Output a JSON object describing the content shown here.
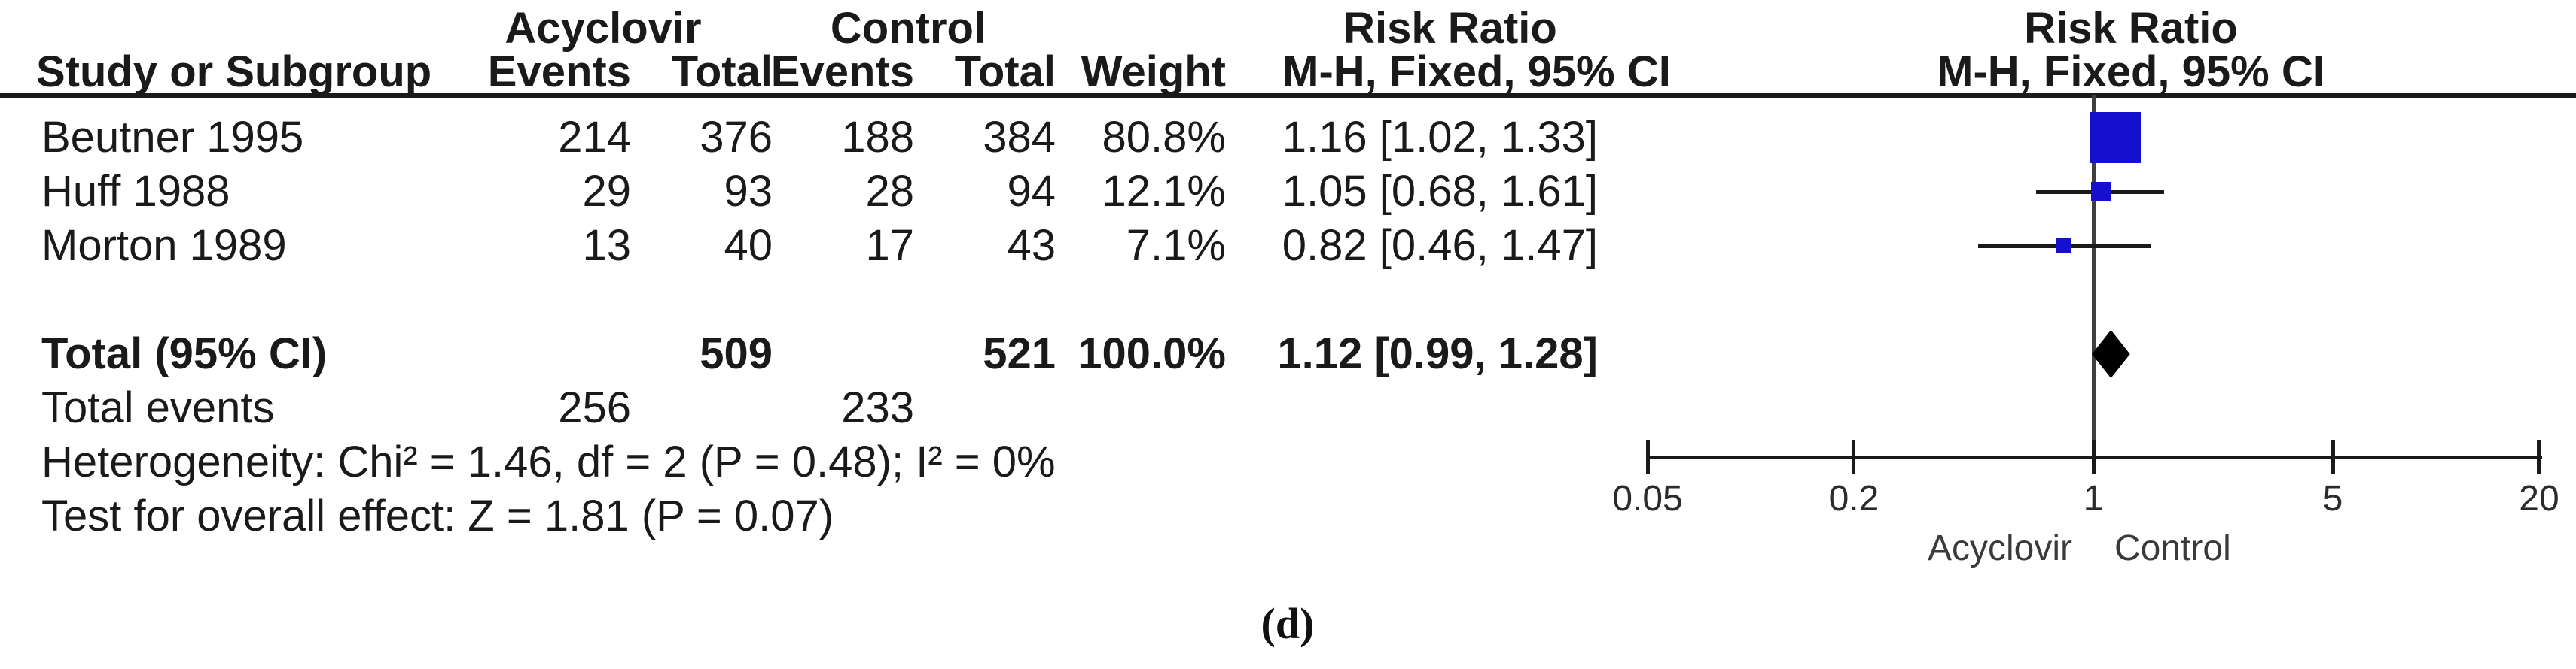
{
  "header": {
    "group_acyclovir": "Acyclovir",
    "group_control": "Control",
    "risk_ratio_left": "Risk Ratio",
    "risk_ratio_right": "Risk Ratio",
    "study_col": "Study or Subgroup",
    "events_col_acyclovir": "Events",
    "total_col_acyclovir": "Total",
    "events_col_control": "Events",
    "total_col_control": "Total",
    "weight_col": "Weight",
    "mh_fixed_left": "M-H, Fixed, 95% CI",
    "mh_fixed_right": "M-H, Fixed, 95% CI"
  },
  "studies": [
    {
      "name": "Beutner 1995",
      "ac_events": "214",
      "ac_total": "376",
      "ctl_events": "188",
      "ctl_total": "384",
      "weight": "80.8%",
      "rr_ci_text": "1.16 [1.02, 1.33]"
    },
    {
      "name": "Huff 1988",
      "ac_events": "29",
      "ac_total": "93",
      "ctl_events": "28",
      "ctl_total": "94",
      "weight": "12.1%",
      "rr_ci_text": "1.05 [0.68, 1.61]"
    },
    {
      "name": "Morton 1989",
      "ac_events": "13",
      "ac_total": "40",
      "ctl_events": "17",
      "ctl_total": "43",
      "weight": "7.1%",
      "rr_ci_text": "0.82 [0.46, 1.47]"
    }
  ],
  "total_row": {
    "label": "Total (95% CI)",
    "ac_total": "509",
    "ctl_total": "521",
    "weight": "100.0%",
    "rr_ci_text": "1.12 [0.99, 1.28]"
  },
  "total_events_row": {
    "label": "Total events",
    "ac_events": "256",
    "ctl_events": "233"
  },
  "heterogeneity_text": "Heterogeneity: Chi² = 1.46, df = 2 (P = 0.48); I² = 0%",
  "overall_effect_text": "Test for overall effect: Z = 1.81 (P = 0.07)",
  "axis": {
    "favours_left": "Acyclovir",
    "favours_right": "Control"
  },
  "caption": "(d)",
  "colors": {
    "marker_blue": "#1410CE",
    "diamond_black": "#000000",
    "line_dark": "#1a1a1a",
    "null_line_gray": "#3f3f3f"
  },
  "chart_data": {
    "type": "scatter",
    "subtype": "forest-plot",
    "effect_measure": "Risk Ratio (M-H, Fixed, 95% CI)",
    "scale": "log10",
    "x_ticks": [
      0.05,
      0.2,
      1,
      5,
      20
    ],
    "xlim": [
      0.05,
      20
    ],
    "null_line": 1,
    "studies": [
      {
        "label": "Beutner 1995",
        "rr": 1.16,
        "ci_low": 1.02,
        "ci_high": 1.33,
        "weight_pct": 80.8
      },
      {
        "label": "Huff 1988",
        "rr": 1.05,
        "ci_low": 0.68,
        "ci_high": 1.61,
        "weight_pct": 12.1
      },
      {
        "label": "Morton 1989",
        "rr": 0.82,
        "ci_low": 0.46,
        "ci_high": 1.47,
        "weight_pct": 7.1
      }
    ],
    "total": {
      "label": "Total (95% CI)",
      "rr": 1.12,
      "ci_low": 0.99,
      "ci_high": 1.28,
      "weight_pct": 100.0
    },
    "favours_left_label": "Acyclovir",
    "favours_right_label": "Control"
  }
}
